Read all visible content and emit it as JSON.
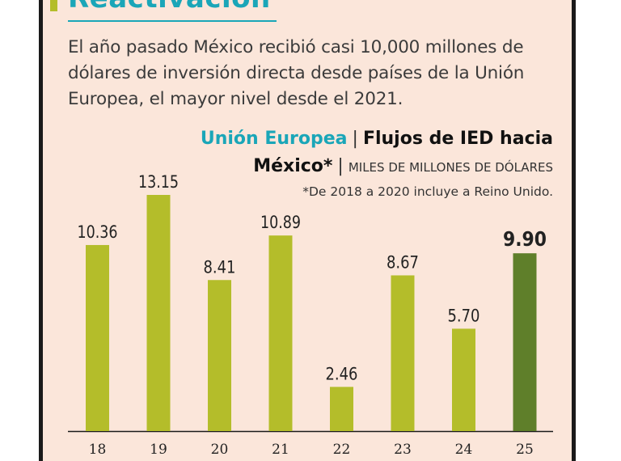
{
  "header": {
    "title": "Reactivación",
    "intro": "El año pasado México recibió casi 10,000 millones de dólares de inversión directa desde países de la Unión Europea, el mayor nivel desde el 2021."
  },
  "chart_data": {
    "type": "bar",
    "title_prefix": "Unión Europea",
    "separator": "|",
    "title": "Flujos de IED hacia",
    "title_line2": "México*",
    "units": "MILES DE MILLONES DE DÓLARES",
    "note": "*De 2018 a 2020 incluye a Reino Unido.",
    "categories": [
      "18",
      "19",
      "20",
      "21",
      "22",
      "23",
      "24",
      "25"
    ],
    "values": [
      10.36,
      13.15,
      8.41,
      10.89,
      2.46,
      8.67,
      5.7,
      9.9
    ],
    "value_labels": [
      "10.36",
      "13.15",
      "8.41",
      "10.89",
      "2.46",
      "8.67",
      "5.70",
      "9.90"
    ],
    "highlight_index": 7,
    "ylim": [
      0,
      13.15
    ],
    "grid": false,
    "colors": {
      "bar": "#b4bd2a",
      "bar_highlight": "#5f7f2a",
      "accent": "#1aa6b8",
      "background": "#fbe6da"
    }
  }
}
